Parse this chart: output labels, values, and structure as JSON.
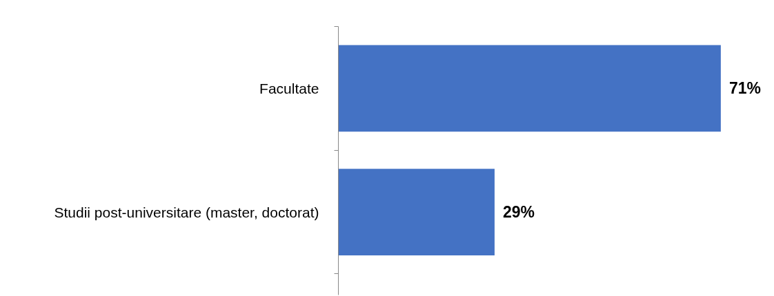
{
  "chart_data": {
    "type": "bar",
    "orientation": "horizontal",
    "categories": [
      "Facultate",
      "Studii post-universitare (master, doctorat)"
    ],
    "values": [
      71,
      29
    ],
    "color": "#4472c4",
    "value_labels": [
      "71%",
      "29%"
    ],
    "grid": false,
    "tick_labels": "y"
  }
}
